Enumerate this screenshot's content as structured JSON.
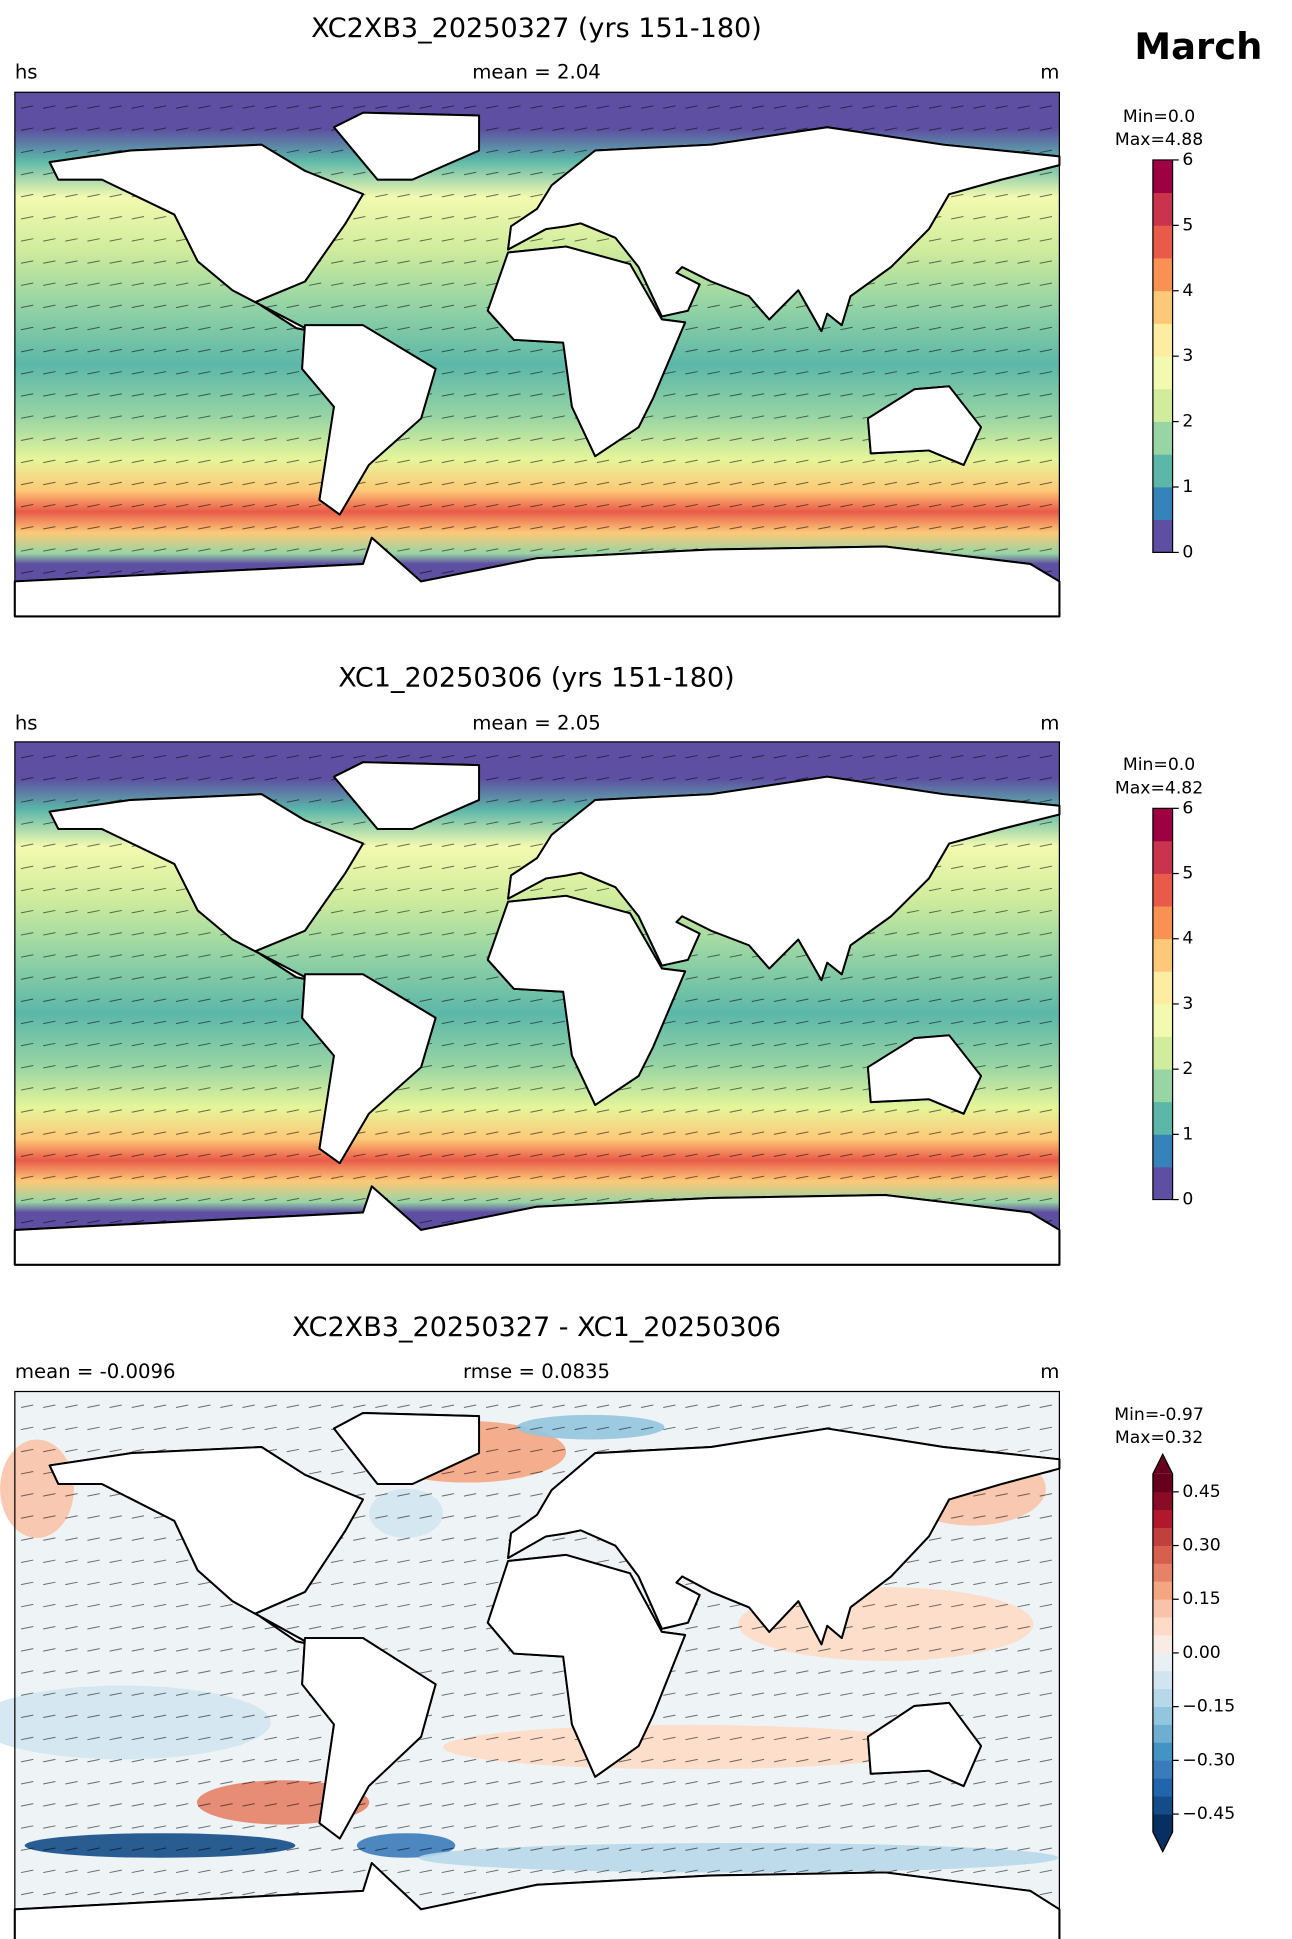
{
  "figure_title": "March",
  "chart_data": [
    {
      "type": "map",
      "title": "XC2XB3_20250327 (yrs 151-180)",
      "label_left": "hs",
      "label_center": "mean = 2.04",
      "label_right": "m",
      "colorbar": {
        "min_label": "Min=0.0",
        "max_label": "Max=4.88",
        "ylim": [
          0,
          6
        ],
        "yticks": [
          0,
          1,
          2,
          3,
          4,
          5,
          6
        ],
        "colors": [
          "#5e4fa2",
          "#3682ba",
          "#5cb7a9",
          "#98d5a4",
          "#d0ec9c",
          "#f3fab0",
          "#feeda1",
          "#fdc877",
          "#f99153",
          "#e85b49",
          "#c9334e",
          "#9e0142"
        ]
      }
    },
    {
      "type": "map",
      "title": "XC1_20250306 (yrs 151-180)",
      "label_left": "hs",
      "label_center": "mean = 2.05",
      "label_right": "m",
      "colorbar": {
        "min_label": "Min=0.0",
        "max_label": "Max=4.82",
        "ylim": [
          0,
          6
        ],
        "yticks": [
          0,
          1,
          2,
          3,
          4,
          5,
          6
        ],
        "colors": [
          "#5e4fa2",
          "#3682ba",
          "#5cb7a9",
          "#98d5a4",
          "#d0ec9c",
          "#f3fab0",
          "#feeda1",
          "#fdc877",
          "#f99153",
          "#e85b49",
          "#c9334e",
          "#9e0142"
        ]
      }
    },
    {
      "type": "map",
      "title": "XC2XB3_20250327 - XC1_20250306",
      "label_left": "mean = -0.0096",
      "label_center": "rmse = 0.0835",
      "label_right": "m",
      "colorbar": {
        "min_label": "Min=-0.97",
        "max_label": "Max=0.32",
        "ylim": [
          -0.5,
          0.5
        ],
        "extend": "both",
        "yticks": [
          {
            "value": -0.45,
            "label": "−0.45"
          },
          {
            "value": -0.3,
            "label": "−0.30"
          },
          {
            "value": -0.15,
            "label": "−0.15"
          },
          {
            "value": 0,
            "label": "0.00"
          },
          {
            "value": 0.15,
            "label": "0.15"
          },
          {
            "value": 0.3,
            "label": "0.30"
          },
          {
            "value": 0.45,
            "label": "0.45"
          }
        ],
        "colors": [
          "#053061",
          "#134c87",
          "#2166ac",
          "#3a7bb9",
          "#4393c3",
          "#6eaed1",
          "#92c5de",
          "#b7d8e9",
          "#d1e5f0",
          "#e8f0f4",
          "#f9ece5",
          "#fddbc7",
          "#f9c3a9",
          "#f4a582",
          "#e58267",
          "#d6604d",
          "#c13f3c",
          "#b2182b",
          "#8a0b25",
          "#67001f"
        ]
      }
    }
  ]
}
